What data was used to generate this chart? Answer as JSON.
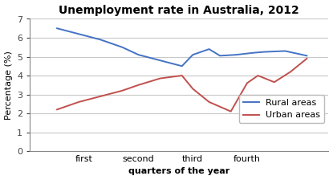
{
  "title": "Unemployment rate in Australia, 2012",
  "xlabel": "quarters of the year",
  "ylabel": "Percentage (%)",
  "ylim": [
    0,
    7
  ],
  "yticks": [
    0,
    1,
    2,
    3,
    4,
    5,
    6,
    7
  ],
  "xlim": [
    -0.5,
    5.0
  ],
  "xtick_positions": [
    0.5,
    1.5,
    2.5,
    3.5
  ],
  "xtick_labels": [
    "first",
    "second",
    "third",
    "fourth"
  ],
  "rural_x": [
    0.0,
    0.4,
    0.8,
    1.2,
    1.5,
    1.9,
    2.3,
    2.5,
    2.8,
    3.0,
    3.3,
    3.6,
    3.8,
    4.2,
    4.6
  ],
  "rural_y": [
    6.5,
    6.2,
    5.9,
    5.5,
    5.1,
    4.8,
    4.5,
    5.1,
    5.4,
    5.05,
    5.1,
    5.2,
    5.25,
    5.3,
    5.05
  ],
  "urban_x": [
    0.0,
    0.4,
    0.8,
    1.2,
    1.5,
    1.9,
    2.3,
    2.5,
    2.8,
    3.2,
    3.5,
    3.7,
    4.0,
    4.3,
    4.6
  ],
  "urban_y": [
    2.2,
    2.6,
    2.9,
    3.2,
    3.5,
    3.85,
    4.0,
    3.3,
    2.6,
    2.1,
    3.6,
    4.0,
    3.65,
    4.2,
    4.9
  ],
  "rural_color": "#4472C4",
  "urban_color": "#C0504D",
  "rural_label": "Rural areas",
  "urban_label": "Urban areas",
  "background_color": "#FFFFFF",
  "grid_color": "#C8C8C8",
  "title_fontsize": 10,
  "axis_label_fontsize": 8,
  "tick_fontsize": 8,
  "legend_fontsize": 8
}
